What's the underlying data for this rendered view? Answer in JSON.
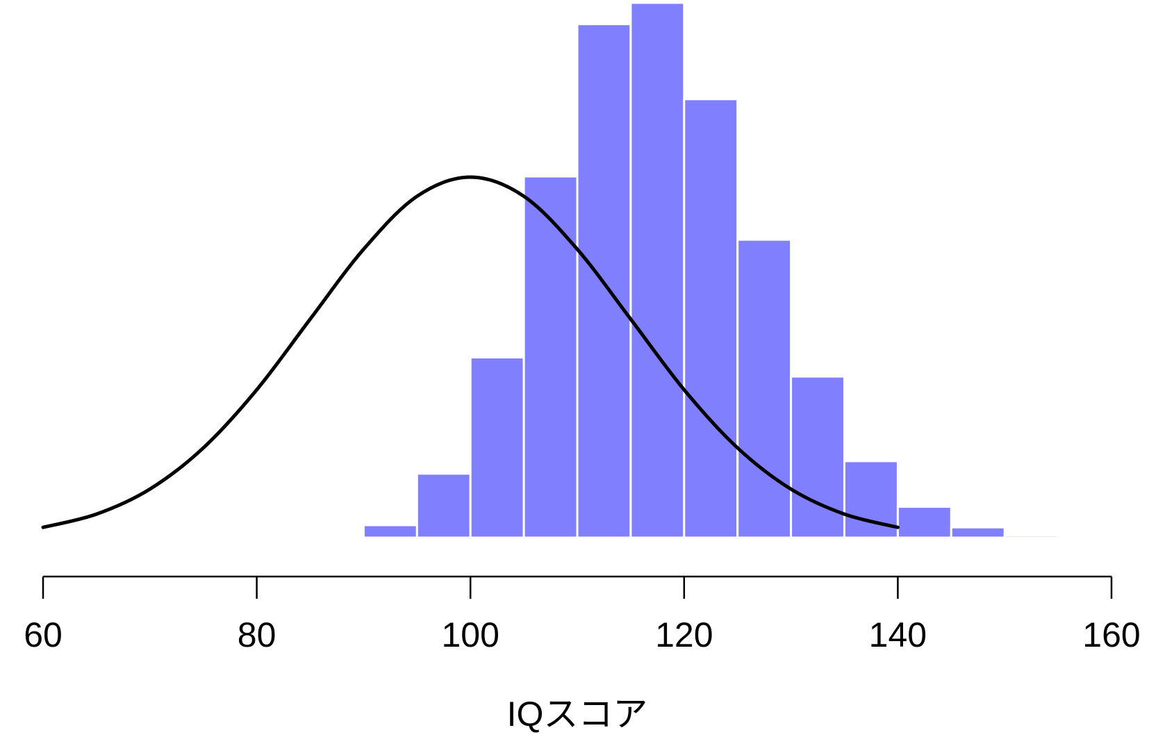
{
  "chart_data": {
    "type": "histogram",
    "xlabel": "IQスコア",
    "bins": [
      90,
      95,
      100,
      105,
      110,
      115,
      120,
      125,
      130,
      135,
      140,
      145,
      150,
      155
    ],
    "counts": [
      17,
      87,
      245,
      491,
      698,
      727,
      596,
      405,
      219,
      104,
      42,
      14,
      3
    ],
    "color": "#8080ff",
    "curve": {
      "color": "#000000",
      "x": [
        60,
        65,
        70,
        75,
        80,
        85,
        90,
        95,
        100,
        105,
        110,
        115,
        120,
        125,
        130,
        135,
        140
      ],
      "values": [
        14,
        32,
        66,
        122,
        201,
        297,
        392,
        464,
        490,
        464,
        392,
        297,
        201,
        122,
        66,
        32,
        14
      ]
    },
    "xlim": [
      60,
      160
    ],
    "xticks": [
      60,
      80,
      100,
      120,
      140,
      160
    ]
  }
}
